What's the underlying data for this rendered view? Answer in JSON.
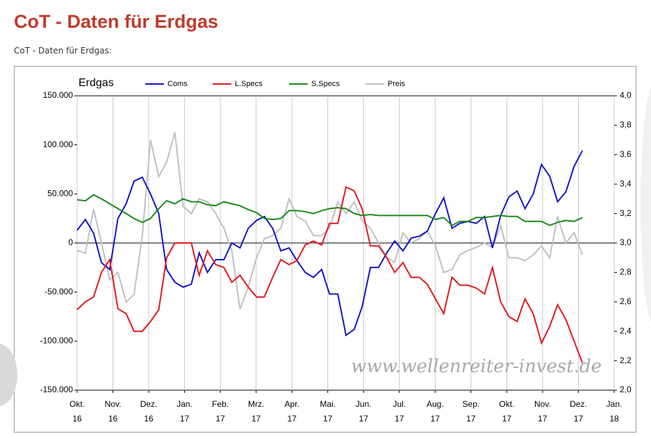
{
  "page": {
    "heading": "CoT - Daten für Erdgas",
    "subheading": "CoT - Daten für Erdgas:"
  },
  "chart_data": {
    "type": "line",
    "title": "Erdgas",
    "watermark": "www.wellenreiter-invest.de",
    "x": [
      0,
      0.23,
      0.46,
      0.68,
      0.91,
      1.14,
      1.37,
      1.59,
      1.82,
      2.05,
      2.28,
      2.5,
      2.73,
      2.96,
      3.19,
      3.41,
      3.64,
      3.87,
      4.1,
      4.32,
      4.55,
      4.78,
      5.01,
      5.23,
      5.46,
      5.69,
      5.92,
      6.14,
      6.37,
      6.6,
      6.83,
      7.05,
      7.28,
      7.51,
      7.74,
      7.96,
      8.19,
      8.42,
      8.65,
      8.87,
      9.1,
      9.33,
      9.56,
      9.78,
      10.01,
      10.24,
      10.47,
      10.69,
      10.92,
      11.15,
      11.38,
      11.6,
      11.83,
      12.06,
      12.29,
      12.51,
      12.74,
      12.97,
      13.2,
      13.42,
      13.65,
      13.88,
      14.11
    ],
    "xlim": [
      0,
      15
    ],
    "xticks": [
      {
        "value": 0,
        "label": "Okt. 16"
      },
      {
        "value": 1,
        "label": "Nov. 16"
      },
      {
        "value": 2,
        "label": "Dez. 16"
      },
      {
        "value": 3,
        "label": "Jan. 17"
      },
      {
        "value": 4,
        "label": "Feb. 17"
      },
      {
        "value": 5,
        "label": "Mrz. 17"
      },
      {
        "value": 6,
        "label": "Apr. 17"
      },
      {
        "value": 7,
        "label": "Mai. 17"
      },
      {
        "value": 8,
        "label": "Jun. 17"
      },
      {
        "value": 9,
        "label": "Jul. 17"
      },
      {
        "value": 10,
        "label": "Aug. 17"
      },
      {
        "value": 11,
        "label": "Sep. 17"
      },
      {
        "value": 12,
        "label": "Okt. 17"
      },
      {
        "value": 13,
        "label": "Nov. 17"
      },
      {
        "value": 14,
        "label": "Dez. 17"
      },
      {
        "value": 15,
        "label": "Jan. 18"
      }
    ],
    "ylim": [
      -150000,
      150000
    ],
    "yticks": [
      {
        "value": -150000,
        "label": "-150.000"
      },
      {
        "value": -100000,
        "label": "-100.000"
      },
      {
        "value": -50000,
        "label": "-50.000"
      },
      0,
      {
        "value": 50000,
        "label": "50.000"
      },
      {
        "value": 100000,
        "label": "100.000"
      },
      {
        "value": 150000,
        "label": "150.000"
      }
    ],
    "y2lim": [
      2.0,
      4.0
    ],
    "y2ticks": [
      {
        "value": 2.0,
        "label": "2,0"
      },
      {
        "value": 2.2,
        "label": "2,2"
      },
      {
        "value": 2.4,
        "label": "2,4"
      },
      {
        "value": 2.6,
        "label": "2,6"
      },
      {
        "value": 2.8,
        "label": "2,8"
      },
      {
        "value": 3.0,
        "label": "3,0"
      },
      {
        "value": 3.2,
        "label": "3,2"
      },
      {
        "value": 3.4,
        "label": "3,4"
      },
      {
        "value": 3.6,
        "label": "3,6"
      },
      {
        "value": 3.8,
        "label": "3,8"
      },
      {
        "value": 4.0,
        "label": "4,0"
      }
    ],
    "grid": "x",
    "series": [
      {
        "name": "Coms",
        "color": "#1414c8",
        "values": [
          13000,
          24000,
          10000,
          -20000,
          -27000,
          25000,
          40000,
          63000,
          67000,
          50000,
          30000,
          -27000,
          -40000,
          -45000,
          -42000,
          -10000,
          -30000,
          -17000,
          -17000,
          0,
          -5000,
          15000,
          23000,
          27000,
          15000,
          -8000,
          -5000,
          -18000,
          -30000,
          -35000,
          -27000,
          -52000,
          -52000,
          -94000,
          -88000,
          -65000,
          -25000,
          -25000,
          -10000,
          2000,
          -8000,
          5000,
          7000,
          12000,
          30000,
          46000,
          15000,
          20000,
          22000,
          20000,
          27000,
          -5000,
          28000,
          47000,
          53000,
          35000,
          50000,
          80000,
          68000,
          42000,
          52000,
          78000,
          94000
        ]
      },
      {
        "name": "L.Specs",
        "color": "#e0191e",
        "values": [
          -68000,
          -60000,
          -55000,
          -30000,
          -17000,
          -67000,
          -72000,
          -90000,
          -90000,
          -80000,
          -68000,
          -15000,
          0,
          0,
          0,
          -33000,
          -8000,
          -22000,
          -25000,
          -40000,
          -33000,
          -45000,
          -55000,
          -55000,
          -35000,
          -17000,
          -22000,
          -18000,
          -2000,
          2000,
          -2000,
          20000,
          20000,
          57000,
          53000,
          35000,
          -3000,
          -3000,
          -15000,
          -30000,
          -20000,
          -35000,
          -35000,
          -42000,
          -57000,
          -72000,
          -35000,
          -43000,
          -43000,
          -46000,
          -52000,
          -25000,
          -60000,
          -75000,
          -80000,
          -57000,
          -72000,
          -102000,
          -85000,
          -63000,
          -78000,
          -100000,
          -122000
        ]
      },
      {
        "name": "S.Specs",
        "color": "#1a8a1a",
        "values": [
          44000,
          43000,
          49000,
          45000,
          40000,
          35000,
          30000,
          25000,
          21000,
          25000,
          35000,
          43000,
          40000,
          45000,
          42000,
          42000,
          39000,
          38000,
          42000,
          40000,
          38000,
          34000,
          31000,
          25000,
          24000,
          25000,
          33000,
          33000,
          32000,
          30000,
          33000,
          35000,
          36000,
          35000,
          30000,
          28000,
          29000,
          28000,
          28000,
          28000,
          28000,
          28000,
          28000,
          28000,
          24000,
          26000,
          18000,
          22000,
          22000,
          26000,
          26000,
          27000,
          28000,
          27000,
          27000,
          22000,
          22000,
          22000,
          18000,
          21000,
          23000,
          22000,
          26000
        ]
      },
      {
        "name": "Preis",
        "color": "#c0c0c0",
        "axis": "y2",
        "values": [
          2.95,
          2.93,
          3.23,
          3.0,
          2.75,
          2.8,
          2.6,
          2.65,
          3.05,
          3.7,
          3.45,
          3.55,
          3.75,
          3.25,
          3.2,
          3.3,
          3.28,
          3.2,
          3.1,
          2.95,
          2.55,
          2.7,
          2.9,
          3.03,
          3.05,
          3.1,
          3.3,
          3.18,
          3.15,
          3.05,
          3.05,
          3.1,
          3.28,
          3.2,
          3.28,
          3.15,
          3.1,
          3.0,
          2.9,
          2.87,
          3.07,
          3.0,
          3.03,
          3.08,
          2.98,
          2.8,
          2.82,
          2.92,
          2.95,
          2.97,
          3.0,
          2.97,
          3.12,
          2.9,
          2.9,
          2.88,
          2.92,
          2.98,
          2.9,
          3.18,
          3.0,
          3.07,
          2.92
        ]
      }
    ]
  }
}
